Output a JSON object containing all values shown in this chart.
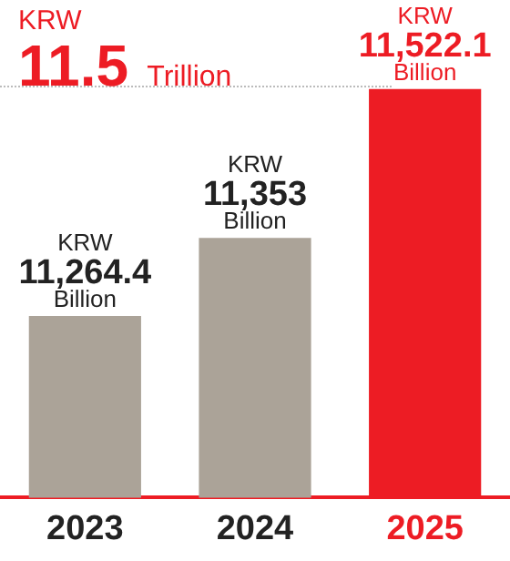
{
  "chart_data": {
    "type": "bar",
    "title": "KRW",
    "subtitle": "11.5 Trillion",
    "categories": [
      "2023",
      "2024",
      "2025"
    ],
    "values": [
      11264.4,
      11353,
      11522.1
    ],
    "colors": [
      "#aba398",
      "#aba398",
      "#ed1c24"
    ],
    "value_labels": [
      "KRW\n11,264.4\nBillion",
      "KRW\n11,353\nBillion",
      "KRW\n11,522.1\nBillion"
    ],
    "tick_labels": "x",
    "grid": false,
    "legend": false
  }
}
